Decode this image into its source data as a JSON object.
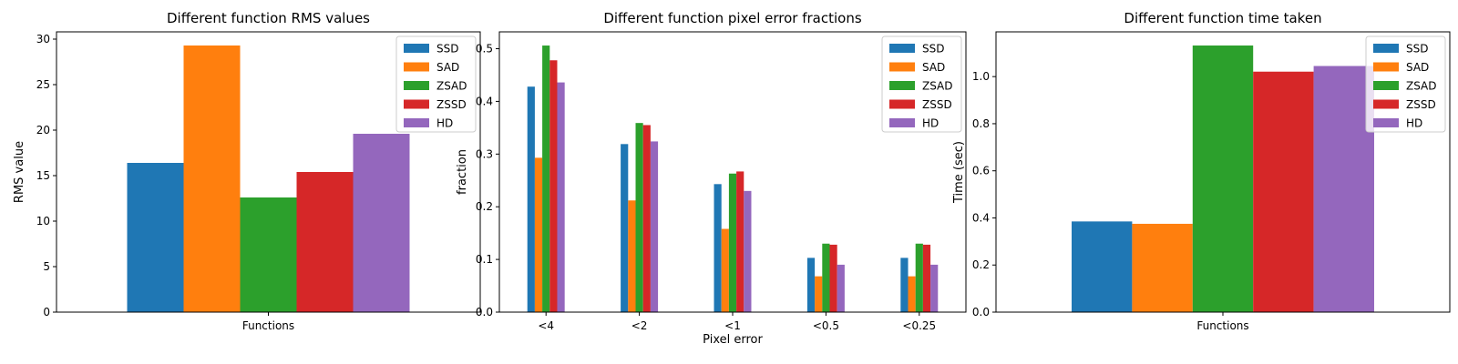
{
  "series_colors": [
    "#1f77b4",
    "#ff7f0e",
    "#2ca02c",
    "#d62728",
    "#9467bd"
  ],
  "chart_data": [
    {
      "type": "bar",
      "title": "Different function RMS values",
      "xlabel": "",
      "ylabel": "RMS value",
      "categories": [
        "Functions"
      ],
      "series": [
        {
          "name": "SSD",
          "values": [
            16.4
          ]
        },
        {
          "name": "SAD",
          "values": [
            29.3
          ]
        },
        {
          "name": "ZSAD",
          "values": [
            12.6
          ]
        },
        {
          "name": "ZSSD",
          "values": [
            15.4
          ]
        },
        {
          "name": "HD",
          "values": [
            19.6
          ]
        }
      ],
      "ylim": [
        0,
        30.8
      ],
      "yticks": [
        0,
        5,
        10,
        15,
        20,
        25,
        30
      ],
      "ytick_labels": [
        "0",
        "5",
        "10",
        "15",
        "20",
        "25",
        "30"
      ],
      "legend": "top-right",
      "grid": false
    },
    {
      "type": "bar",
      "title": "Different function pixel error fractions",
      "xlabel": "Pixel error",
      "ylabel": "fraction",
      "categories": [
        "<4",
        "<2",
        "<1",
        "<0.5",
        "<0.25"
      ],
      "series": [
        {
          "name": "SSD",
          "values": [
            0.428,
            0.319,
            0.243,
            0.103,
            0.103
          ]
        },
        {
          "name": "SAD",
          "values": [
            0.293,
            0.212,
            0.158,
            0.068,
            0.068
          ]
        },
        {
          "name": "ZSAD",
          "values": [
            0.506,
            0.359,
            0.263,
            0.13,
            0.13
          ]
        },
        {
          "name": "ZSSD",
          "values": [
            0.478,
            0.355,
            0.267,
            0.128,
            0.128
          ]
        },
        {
          "name": "HD",
          "values": [
            0.436,
            0.324,
            0.23,
            0.09,
            0.09
          ]
        }
      ],
      "ylim": [
        0,
        0.532
      ],
      "yticks": [
        0,
        0.1,
        0.2,
        0.3,
        0.4,
        0.5
      ],
      "ytick_labels": [
        "0.0",
        "0.1",
        "0.2",
        "0.3",
        "0.4",
        "0.5"
      ],
      "legend": "top-right",
      "grid": false
    },
    {
      "type": "bar",
      "title": "Different function time taken",
      "xlabel": "",
      "ylabel": "Time (sec)",
      "categories": [
        "Functions"
      ],
      "series": [
        {
          "name": "SSD",
          "values": [
            0.385
          ]
        },
        {
          "name": "SAD",
          "values": [
            0.375
          ]
        },
        {
          "name": "ZSAD",
          "values": [
            1.132
          ]
        },
        {
          "name": "ZSSD",
          "values": [
            1.021
          ]
        },
        {
          "name": "HD",
          "values": [
            1.045
          ]
        }
      ],
      "ylim": [
        0,
        1.19
      ],
      "yticks": [
        0,
        0.2,
        0.4,
        0.6,
        0.8,
        1.0
      ],
      "ytick_labels": [
        "0.0",
        "0.2",
        "0.4",
        "0.6",
        "0.8",
        "1.0"
      ],
      "legend": "top-right",
      "grid": false
    }
  ]
}
